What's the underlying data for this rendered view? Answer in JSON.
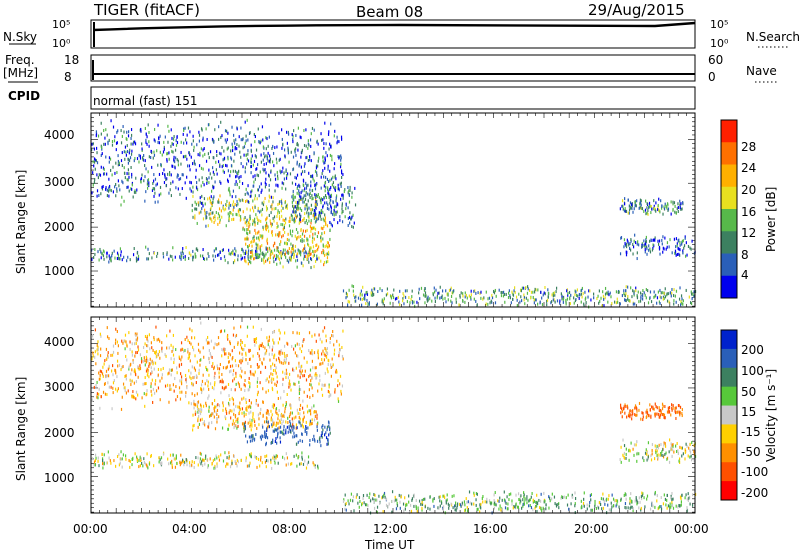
{
  "header": {
    "station": "TIGER (fitACF)",
    "beam": "Beam 08",
    "date": "29/Aug/2015"
  },
  "top_panels": {
    "nsky_label": "N.Sky",
    "nsky_ticks": [
      "10^5",
      "10^0"
    ],
    "nsearch_label": "N.Search",
    "nsearch_ticks": [
      "10^5",
      "10^0"
    ],
    "freq_label": "Freq.",
    "freq_unit": "[MHz]",
    "freq_ticks": [
      "18",
      "8"
    ],
    "nave_label": "Nave",
    "nave_ticks": [
      "60",
      "0"
    ],
    "cpid_label": "CPID",
    "cpid_value": "normal (fast) 151"
  },
  "chart_data": [
    {
      "type": "heatmap",
      "panel": "power",
      "xlabel": "",
      "ylabel": "Slant Range [km]",
      "x_ticks": [
        "00:00",
        "04:00",
        "08:00",
        "12:00",
        "16:00",
        "20:00",
        "00:00"
      ],
      "xlim_hours": [
        0,
        24
      ],
      "y_ticks": [
        1000,
        2000,
        3000,
        4000
      ],
      "ylim": [
        180,
        4600
      ],
      "colorbar_label": "Power [dB]",
      "colorbar_ticks": [
        4,
        8,
        12,
        16,
        20,
        24,
        28
      ],
      "colorbar_range": [
        0,
        30
      ],
      "colors": [
        "#0000ee",
        "#2a5fb8",
        "#3c8060",
        "#57b84a",
        "#e8e020",
        "#ffb000",
        "#ff7000",
        "#ff2000"
      ],
      "echo_regions": [
        {
          "hours": [
            0,
            9
          ],
          "range_km": [
            1200,
            1600
          ],
          "level": 0.28
        },
        {
          "hours": [
            4,
            9
          ],
          "range_km": [
            2000,
            2800
          ],
          "level": 0.45
        },
        {
          "hours": [
            6,
            9.5
          ],
          "range_km": [
            1100,
            2300
          ],
          "level": 0.6
        },
        {
          "hours": [
            8,
            10.5
          ],
          "range_km": [
            2000,
            3100
          ],
          "level": 0.25
        },
        {
          "hours": [
            10,
            24
          ],
          "range_km": [
            200,
            700
          ],
          "level": 0.35
        },
        {
          "hours": [
            21,
            24
          ],
          "range_km": [
            1300,
            1900
          ],
          "level": 0.2
        },
        {
          "hours": [
            21,
            23.5
          ],
          "range_km": [
            2300,
            2700
          ],
          "level": 0.3
        },
        {
          "hours": [
            0,
            10
          ],
          "range_km": [
            2500,
            4500
          ],
          "level": 0.2
        }
      ]
    },
    {
      "type": "heatmap",
      "panel": "velocity",
      "xlabel": "Time UT",
      "ylabel": "Slant Range [km]",
      "x_ticks": [
        "00:00",
        "04:00",
        "08:00",
        "12:00",
        "16:00",
        "20:00",
        "00:00"
      ],
      "xlim_hours": [
        0,
        24
      ],
      "y_ticks": [
        1000,
        2000,
        3000,
        4000
      ],
      "ylim": [
        180,
        4600
      ],
      "colorbar_label": "Velocity [m s⁻¹]",
      "colorbar_ticks": [
        200,
        100,
        50,
        15,
        -15,
        -50,
        -100,
        -200
      ],
      "colors": [
        "#0022cc",
        "#2a5fb8",
        "#3c8060",
        "#57c83a",
        "#c8c8c8",
        "#ffd000",
        "#ff9000",
        "#ff5000",
        "#ff0000"
      ],
      "echo_regions": [
        {
          "hours": [
            0,
            9
          ],
          "range_km": [
            1200,
            1600
          ],
          "velocity": 0
        },
        {
          "hours": [
            4,
            9
          ],
          "range_km": [
            2000,
            2800
          ],
          "velocity": -40
        },
        {
          "hours": [
            6,
            9.5
          ],
          "range_km": [
            1700,
            2300
          ],
          "velocity": 150
        },
        {
          "hours": [
            10,
            24
          ],
          "range_km": [
            200,
            700
          ],
          "velocity": 40
        },
        {
          "hours": [
            21,
            24
          ],
          "range_km": [
            1300,
            1900
          ],
          "velocity": 0
        },
        {
          "hours": [
            21,
            23.5
          ],
          "range_km": [
            2300,
            2700
          ],
          "velocity": -120
        },
        {
          "hours": [
            0,
            10
          ],
          "range_km": [
            2500,
            4500
          ],
          "velocity": -50
        }
      ]
    }
  ]
}
